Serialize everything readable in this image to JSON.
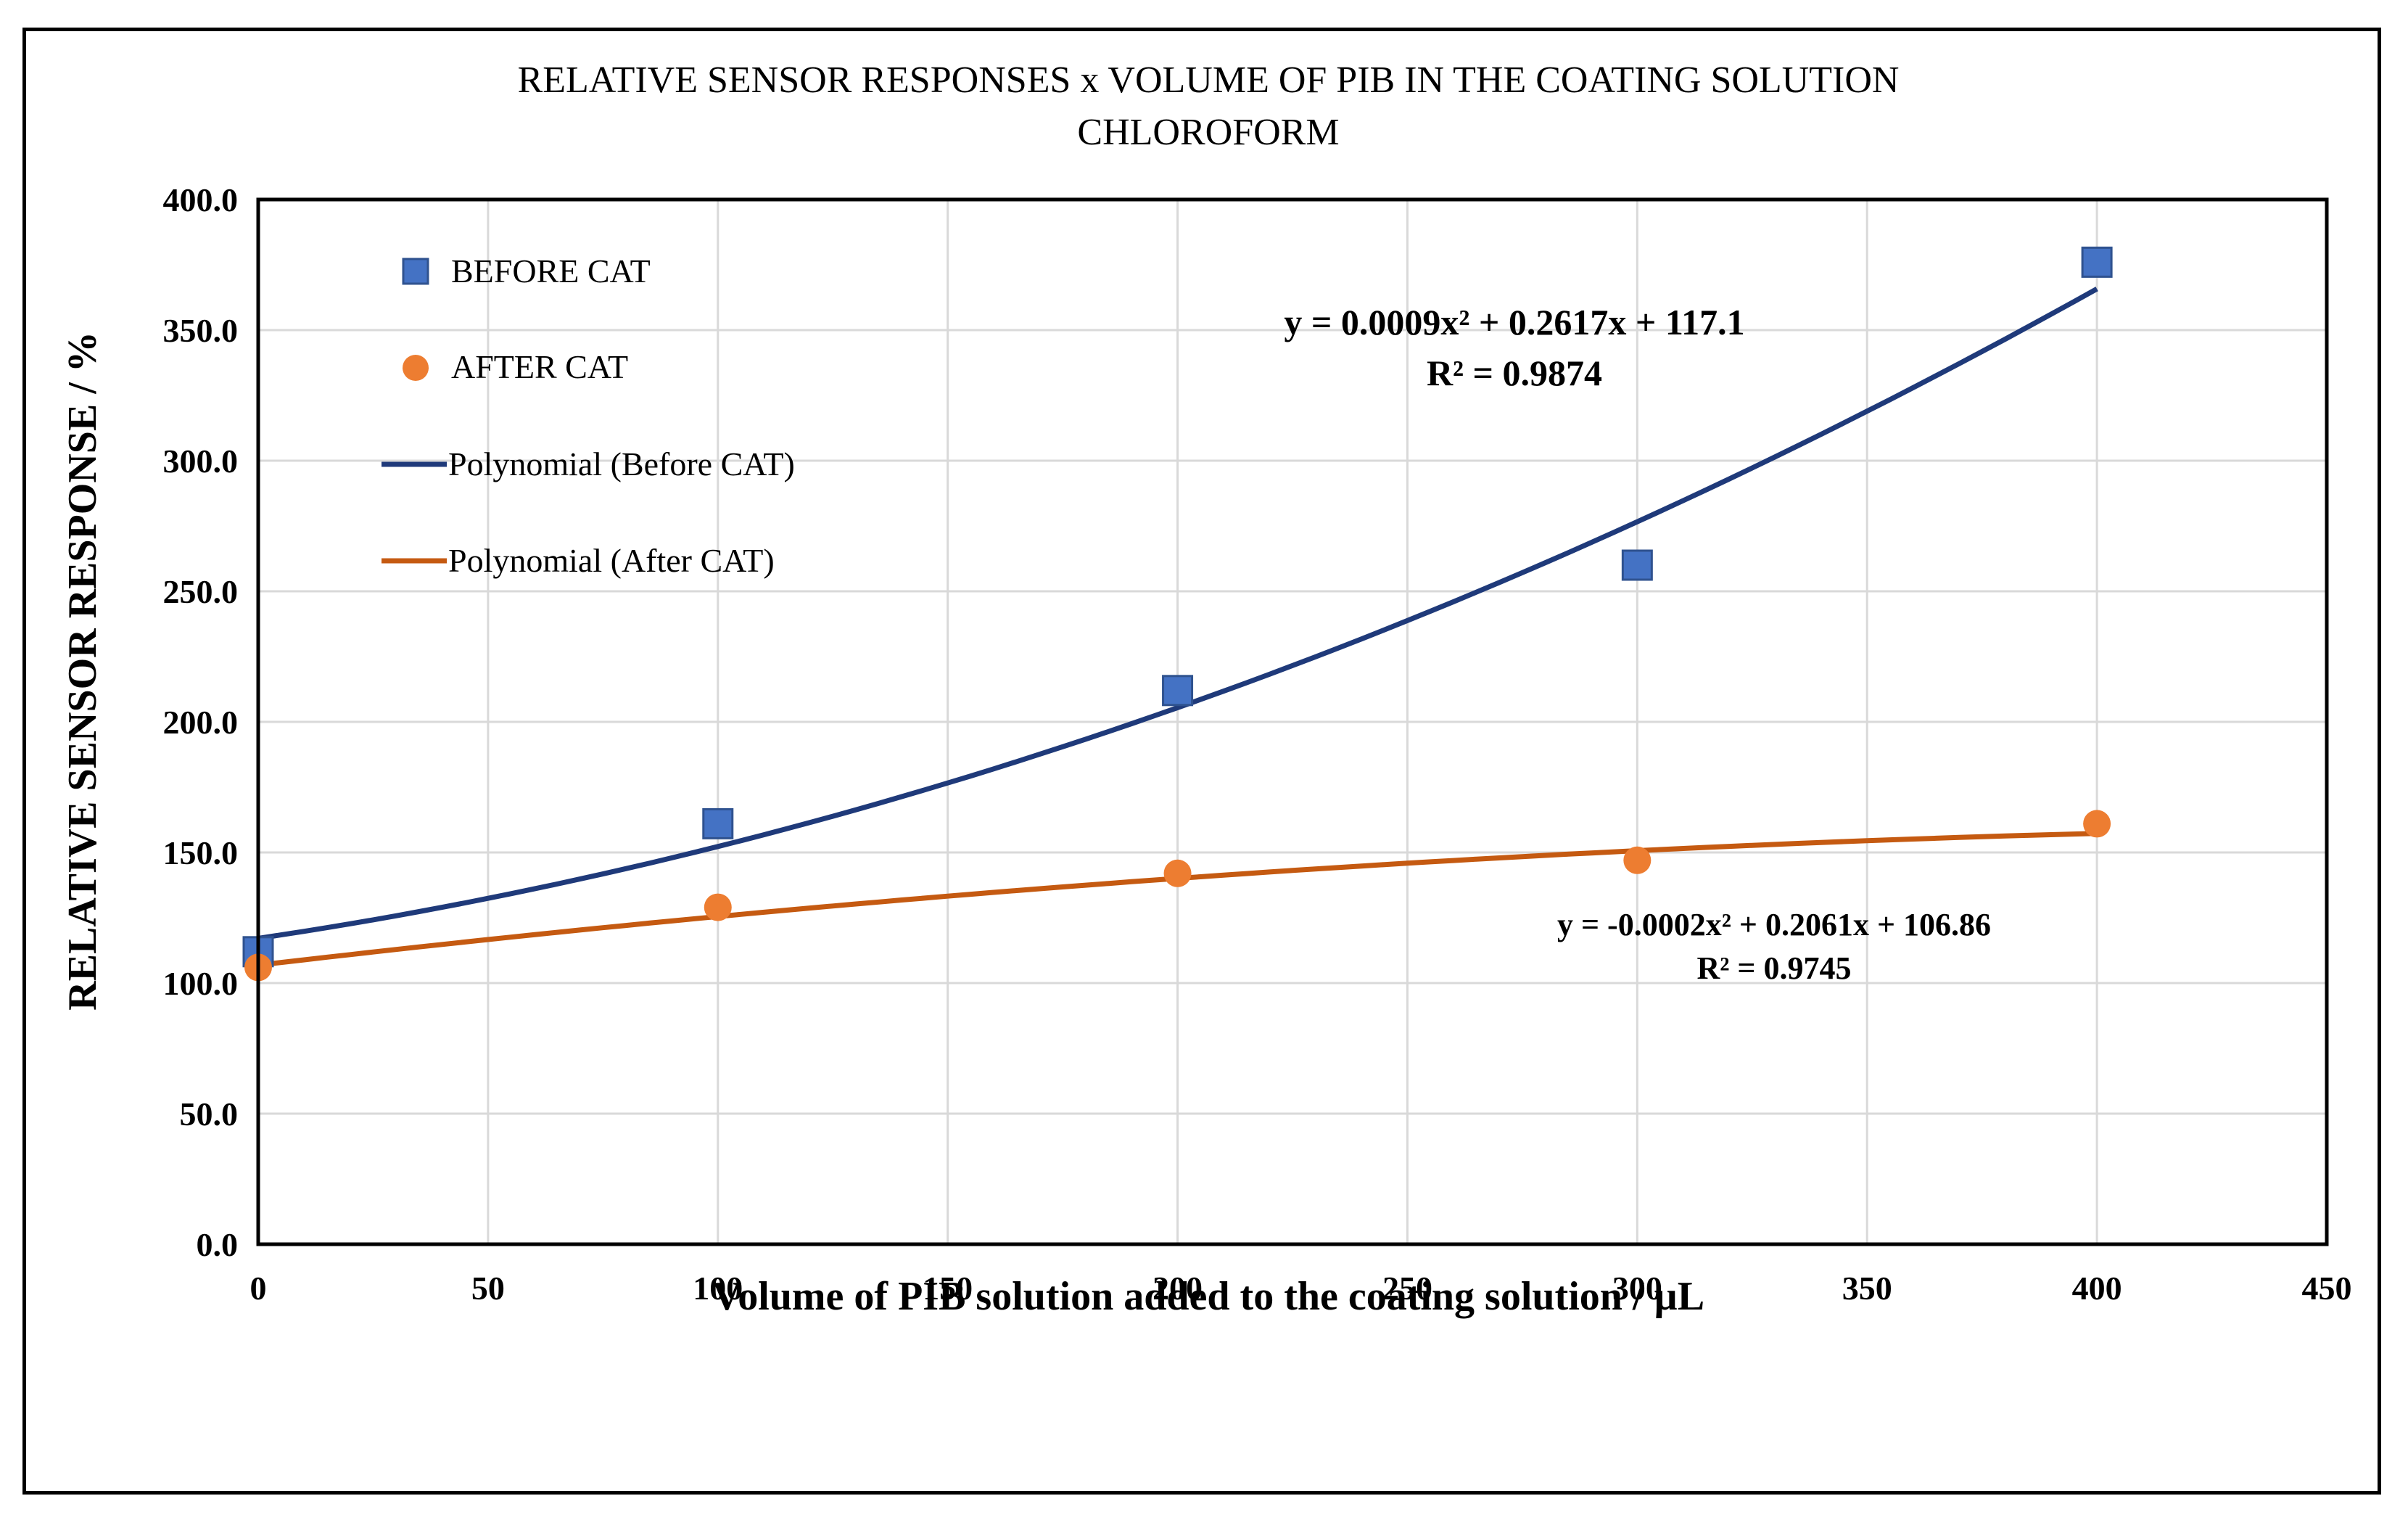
{
  "chart_data": {
    "type": "scatter",
    "title": "RELATIVE SENSOR RESPONSES x VOLUME OF PIB IN THE COATING SOLUTION",
    "subtitle": "CHLOROFORM",
    "xlabel": "Volume of PIB solution added to the coating solution / µL",
    "ylabel": "RELATIVE  SENSOR RESPONSE / %",
    "xlim": [
      0,
      450
    ],
    "ylim": [
      0,
      400
    ],
    "xticks": [
      "0",
      "50",
      "100",
      "150",
      "200",
      "250",
      "300",
      "350",
      "400",
      "450"
    ],
    "yticks": [
      "0.0",
      "50.0",
      "100.0",
      "150.0",
      "200.0",
      "250.0",
      "300.0",
      "350.0",
      "400.0"
    ],
    "grid": true,
    "legend_position": "top-left",
    "series": [
      {
        "name": "BEFORE CAT",
        "marker": "square",
        "color": "#4472C4",
        "x": [
          0,
          100,
          200,
          300,
          400
        ],
        "y": [
          112,
          161,
          212,
          260,
          376
        ]
      },
      {
        "name": "AFTER CAT",
        "marker": "circle",
        "color": "#ED7D31",
        "x": [
          0,
          100,
          200,
          300,
          400
        ],
        "y": [
          106,
          129,
          142,
          147,
          161
        ]
      }
    ],
    "trendlines": [
      {
        "name": "Polynomial (Before CAT)",
        "color": "#1F3A7A",
        "coefficients": [
          0.0009,
          0.2617,
          117.1
        ],
        "equation": "y = 0.0009x² + 0.2617x + 117.1",
        "r2": "R² = 0.9874"
      },
      {
        "name": "Polynomial (After CAT)",
        "color": "#C55A11",
        "coefficients": [
          -0.0002,
          0.2061,
          106.86
        ],
        "equation": "y = -0.0002x² + 0.2061x + 106.86",
        "r2": "R² = 0.9745"
      }
    ]
  }
}
